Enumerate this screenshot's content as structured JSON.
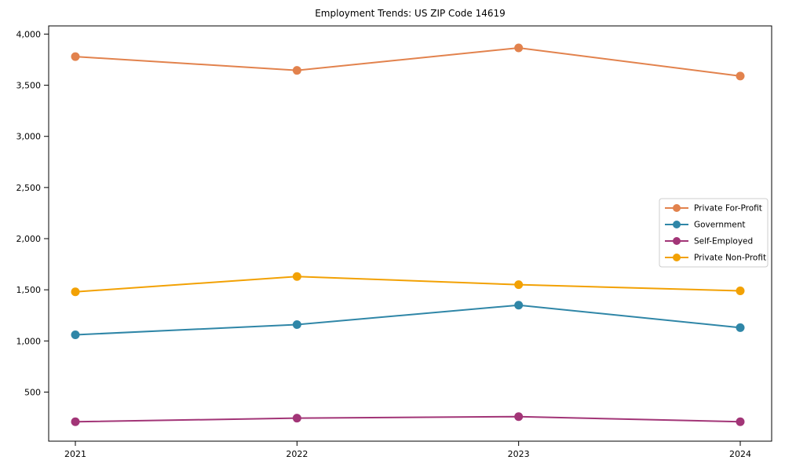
{
  "page": {
    "background": "#ffffff"
  },
  "chart_data": {
    "type": "line",
    "title": "Employment Trends: US ZIP Code 14619",
    "xlabel": "",
    "ylabel": "",
    "categories": [
      "2021",
      "2022",
      "2023",
      "2024"
    ],
    "series": [
      {
        "name": "Private For-Profit",
        "color": "#e2824d",
        "values": [
          3780,
          3645,
          3865,
          3590
        ]
      },
      {
        "name": "Government",
        "color": "#2f86a7",
        "values": [
          1060,
          1160,
          1350,
          1130
        ]
      },
      {
        "name": "Self-Employed",
        "color": "#a23577",
        "values": [
          210,
          245,
          260,
          210
        ]
      },
      {
        "name": "Private Non-Profit",
        "color": "#f2a104",
        "values": [
          1480,
          1630,
          1550,
          1490
        ]
      }
    ],
    "y_ticks": [
      500,
      1000,
      1500,
      2000,
      2500,
      3000,
      3500,
      4000
    ],
    "y_tick_labels": [
      "500",
      "1,000",
      "1,500",
      "2,000",
      "2,500",
      "3,000",
      "3,500",
      "4,000"
    ],
    "ylim": [
      20,
      4080
    ],
    "grid": false,
    "legend_position": "right-middle",
    "marker": "circle",
    "axis_color": "#000000",
    "legend_border_color": "#cccccc",
    "tick_label_color": "#000000"
  }
}
